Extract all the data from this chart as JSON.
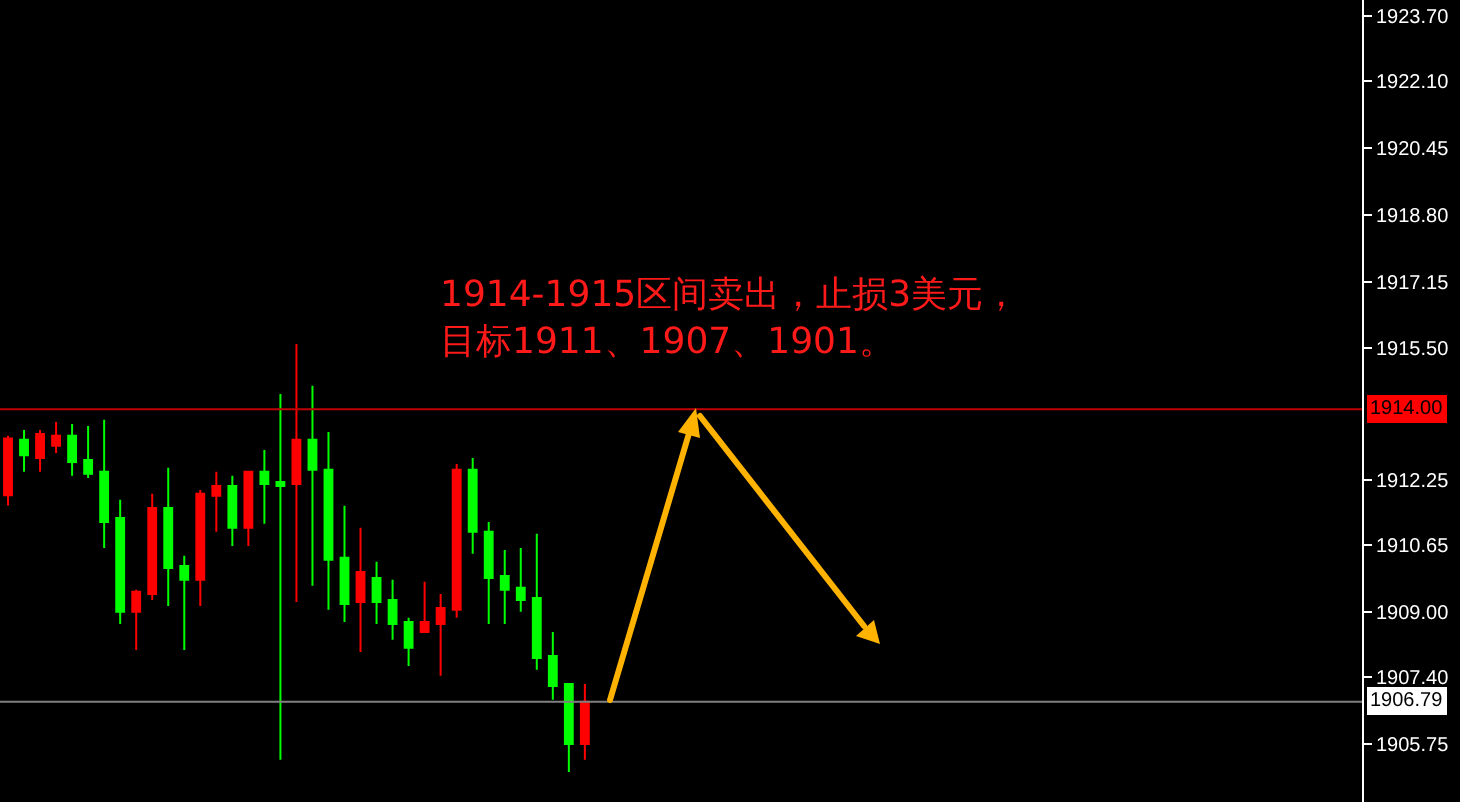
{
  "chart_data": {
    "type": "candlestick",
    "categories": [
      null,
      null,
      null,
      null,
      null,
      null,
      null,
      null,
      null,
      null,
      null,
      null,
      null,
      null,
      null,
      null,
      null,
      null,
      null,
      null,
      null,
      null,
      null,
      null,
      null,
      null,
      null,
      null,
      null,
      null,
      null,
      null,
      null,
      null,
      null,
      null,
      null,
      null,
      null,
      null,
      null,
      null,
      null,
      null,
      null,
      null,
      null,
      null,
      null,
      null,
      null,
      null,
      null,
      null,
      null,
      null,
      null,
      null,
      null,
      null,
      null,
      null,
      null,
      null,
      null,
      null,
      null,
      null,
      null,
      null,
      null,
      null,
      null,
      null,
      null,
      null,
      null,
      null,
      null,
      null,
      null,
      null,
      null,
      null,
      null
    ],
    "ohlc": [
      [
        1911.88,
        1913.35,
        1911.63,
        1913.28
      ],
      [
        1913.25,
        1913.49,
        1912.46,
        1912.87
      ],
      [
        1912.8,
        1913.49,
        1912.46,
        1913.39
      ],
      [
        1913.1,
        1913.69,
        1912.92,
        1913.35
      ],
      [
        1913.35,
        1913.64,
        1912.36,
        1912.7
      ],
      [
        1912.75,
        1913.59,
        1912.31,
        1912.41
      ],
      [
        1912.46,
        1913.74,
        1910.58,
        1911.22
      ],
      [
        1911.32,
        1911.77,
        1908.71,
        1909.01
      ],
      [
        1909.01,
        1909.55,
        1908.07,
        1909.5
      ],
      [
        1909.45,
        1911.92,
        1909.3,
        1911.57
      ],
      [
        1911.57,
        1912.56,
        1909.15,
        1910.09
      ],
      [
        1910.14,
        1910.39,
        1908.07,
        1909.8
      ],
      [
        1909.8,
        1912.01,
        1909.15,
        1911.92
      ],
      [
        1911.87,
        1912.46,
        1910.98,
        1912.11
      ],
      [
        1912.11,
        1912.36,
        1910.63,
        1911.08
      ],
      [
        1911.08,
        1912.46,
        1910.63,
        1912.46
      ],
      [
        1912.46,
        1913.0,
        1911.18,
        1912.16
      ],
      [
        1912.21,
        1914.38,
        1905.36,
        1912.11
      ],
      [
        1912.16,
        1915.61,
        1909.25,
        1913.25
      ],
      [
        1913.25,
        1914.58,
        1909.65,
        1912.51
      ],
      [
        1912.51,
        1913.44,
        1909.06,
        1910.29
      ],
      [
        1910.34,
        1911.62,
        1908.76,
        1909.2
      ],
      [
        1909.25,
        1911.08,
        1908.02,
        1909.99
      ],
      [
        1909.84,
        1910.24,
        1908.71,
        1909.25
      ],
      [
        1909.3,
        1909.8,
        1908.32,
        1908.71
      ],
      [
        1908.76,
        1908.86,
        1907.67,
        1908.12
      ],
      [
        1908.51,
        1909.75,
        1908.51,
        1908.76
      ],
      [
        1908.71,
        1909.45,
        1907.43,
        1909.1
      ],
      [
        1909.06,
        1912.65,
        1908.86,
        1912.51
      ],
      [
        1912.51,
        1912.8,
        1910.44,
        1910.98
      ],
      [
        1910.98,
        1911.22,
        1908.71,
        1909.84
      ],
      [
        1909.89,
        1910.53,
        1908.71,
        1909.55
      ],
      [
        1909.6,
        1910.58,
        1909.01,
        1909.3
      ],
      [
        1909.35,
        1910.93,
        1907.58,
        1907.87
      ],
      [
        1907.92,
        1908.51,
        1906.84,
        1907.18
      ],
      [
        1907.23,
        1907.23,
        1905.06,
        1905.75
      ],
      [
        1905.75,
        1907.23,
        1905.36,
        1906.79
      ],
      null,
      null,
      null,
      null,
      null,
      null,
      null,
      null,
      null,
      null,
      null,
      null,
      null,
      null,
      null,
      null,
      null,
      null,
      null,
      null,
      null,
      null,
      null,
      null,
      null,
      null,
      null,
      null,
      null,
      null,
      null,
      null,
      null,
      null,
      null,
      null,
      null,
      null,
      null,
      null,
      null,
      null,
      null,
      null,
      null,
      null,
      null,
      null
    ],
    "colors": [
      "#ff0000",
      "#00ff00",
      "#ff0000",
      "#ff0000",
      "#00ff00",
      "#00ff00",
      "#00ff00",
      "#00ff00",
      "#ff0000",
      "#ff0000",
      "#00ff00",
      "#00ff00",
      "#ff0000",
      "#ff0000",
      "#00ff00",
      "#ff0000",
      "#00ff00",
      "#00ff00",
      "#ff0000",
      "#00ff00",
      "#00ff00",
      "#00ff00",
      "#ff0000",
      "#00ff00",
      "#00ff00",
      "#00ff00",
      "#ff0000",
      "#ff0000",
      "#ff0000",
      "#00ff00",
      "#00ff00",
      "#00ff00",
      "#00ff00",
      "#00ff00",
      "#00ff00",
      "#00ff00",
      "#ff0000",
      null,
      null,
      null,
      null,
      null,
      null,
      null,
      null,
      null,
      null,
      null,
      null,
      null,
      null,
      null,
      null,
      null,
      null,
      null,
      null,
      null,
      null,
      null,
      null,
      null,
      null,
      null,
      null,
      null,
      null,
      null,
      null,
      null,
      null,
      null,
      null,
      null,
      null,
      null,
      null,
      null,
      null,
      null,
      null,
      null,
      null,
      null,
      null
    ],
    "ylim": [
      1904.32,
      1924.09
    ],
    "yticks": [
      1905.75,
      {
        "value": 1907.4,
        "label": "1907.40"
      },
      {
        "value": 1909,
        "label": "1909.00"
      },
      1910.65,
      1912.25,
      {
        "value": 1915.5,
        "label": "1915.50"
      },
      1917.15,
      {
        "value": 1918.8,
        "label": "1918.80"
      },
      1920.45,
      {
        "value": 1922.1,
        "label": "1922.10"
      },
      {
        "value": 1923.7,
        "label": "1923.70"
      }
    ],
    "ref_lines": [
      {
        "axis": "y",
        "value": 1914,
        "label": "1914.00",
        "color": "#c00000"
      },
      {
        "axis": "y",
        "value": 1906.79,
        "label": "1906.79",
        "color": "#808080"
      }
    ],
    "annotations": [
      "1914-1915区间卖出，止损3美元，",
      "目标1911、1907、1901。"
    ],
    "tick_labels": "y",
    "grid": false
  }
}
